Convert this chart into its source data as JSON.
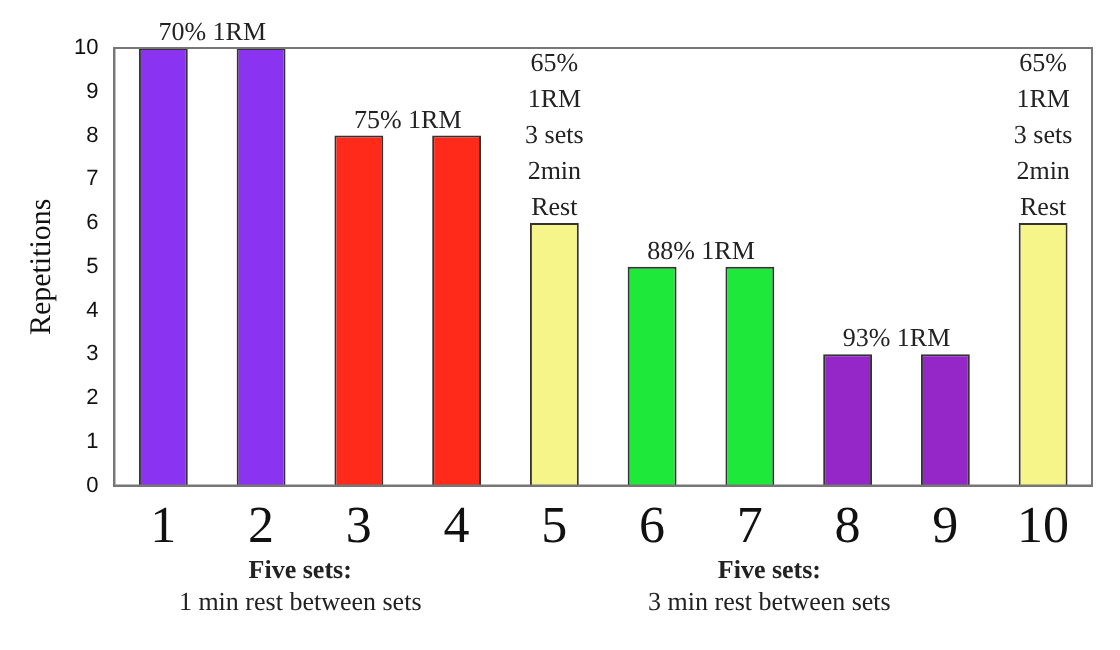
{
  "chart_data": {
    "type": "bar",
    "ylabel": "Repetitions",
    "categories": [
      "1",
      "2",
      "3",
      "4",
      "5",
      "6",
      "7",
      "8",
      "9",
      "10"
    ],
    "values": [
      10,
      10,
      8,
      8,
      6,
      5,
      5,
      3,
      3,
      6
    ],
    "colors": [
      "#8a34f2",
      "#8a34f2",
      "#ff2a1a",
      "#ff2a1a",
      "#f5f58a",
      "#1ee83a",
      "#1ee83a",
      "#9526c8",
      "#9526c8",
      "#f5f58a"
    ],
    "ylim": [
      0,
      10
    ],
    "yticks": [
      0,
      1,
      2,
      3,
      4,
      5,
      6,
      7,
      8,
      9,
      10
    ],
    "grid": false,
    "legend": false,
    "annotations": [
      {
        "text": "70% 1RM",
        "x": "1",
        "y": 10
      },
      {
        "text": "75% 1RM",
        "x": "3",
        "y": 8
      },
      {
        "text": "65%\n1RM\n3 sets\n2min\nRest",
        "x": "5",
        "y": 6
      },
      {
        "text": "88% 1RM",
        "x": "6",
        "y": 5
      },
      {
        "text": "93% 1RM",
        "x": "8",
        "y": 3
      },
      {
        "text": "65%\n1RM\n3 sets\n2min\nRest",
        "x": "10",
        "y": 6
      },
      "Five sets:\n1 min rest between sets",
      "Five sets:\n3 min rest between sets"
    ]
  }
}
